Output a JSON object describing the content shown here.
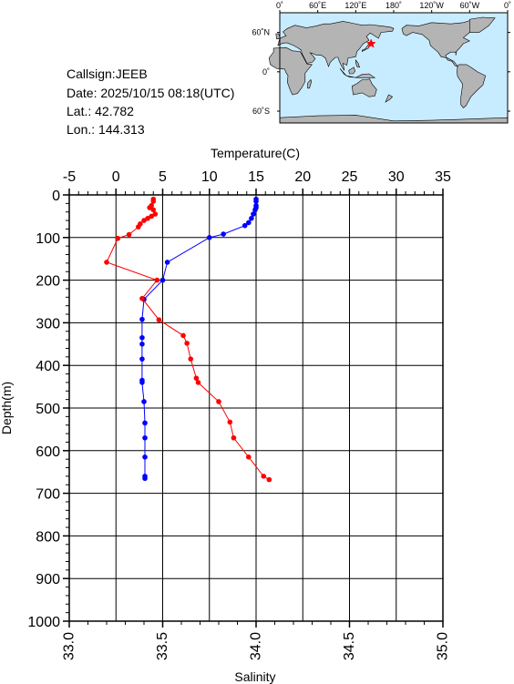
{
  "info": {
    "callsign": "Callsign:JEEB",
    "date": "Date:  2025/10/15 08:18(UTC)",
    "lat": "Lat.:  42.782",
    "lon": "Lon.:  144.313"
  },
  "map": {
    "lon_ticks": [
      "0˚",
      "60˚E",
      "120˚E",
      "180˚",
      "120˚W",
      "60˚W",
      "0˚"
    ],
    "lat_ticks": [
      "60˚N",
      "0˚",
      "60˚S"
    ],
    "ocean_color": "#c8ecff",
    "land_color": "#b4b4b4",
    "marker_color": "#ff0000",
    "marker_icon": "star-icon",
    "station": {
      "lat": 42.782,
      "lon": 144.313
    }
  },
  "chart_data": {
    "type": "line",
    "xlabel_top": "Temperature(C)",
    "xlabel_bottom": "Salinity",
    "ylabel": "Depth(m)",
    "y_reversed": true,
    "ylim": [
      0,
      1000
    ],
    "y_ticks": [
      "0",
      "100",
      "200",
      "300",
      "400",
      "500",
      "600",
      "700",
      "800",
      "900",
      "1000"
    ],
    "temp_lim": [
      -5,
      35
    ],
    "temp_ticks": [
      "-5",
      "0",
      "5",
      "10",
      "15",
      "20",
      "25",
      "30",
      "35"
    ],
    "sal_lim": [
      33.0,
      35.0
    ],
    "sal_ticks": [
      "33.0",
      "33.5",
      "34.0",
      "34.5",
      "35.0"
    ],
    "grid": true,
    "series": [
      {
        "key": "temperature",
        "axis": "top",
        "color": "#0000ff",
        "points": [
          {
            "value": 15.0,
            "depth": 10
          },
          {
            "value": 15.0,
            "depth": 15
          },
          {
            "value": 15.0,
            "depth": 25
          },
          {
            "value": 15.0,
            "depth": 30
          },
          {
            "value": 14.9,
            "depth": 35
          },
          {
            "value": 14.7,
            "depth": 45
          },
          {
            "value": 14.5,
            "depth": 55
          },
          {
            "value": 14.2,
            "depth": 65
          },
          {
            "value": 13.8,
            "depth": 72
          },
          {
            "value": 11.5,
            "depth": 92
          },
          {
            "value": 10.0,
            "depth": 100
          },
          {
            "value": 5.5,
            "depth": 158
          },
          {
            "value": 5.0,
            "depth": 200
          },
          {
            "value": 3.0,
            "depth": 245
          },
          {
            "value": 2.8,
            "depth": 292
          },
          {
            "value": 2.8,
            "depth": 335
          },
          {
            "value": 2.8,
            "depth": 350
          },
          {
            "value": 2.8,
            "depth": 385
          },
          {
            "value": 2.8,
            "depth": 435
          },
          {
            "value": 2.8,
            "depth": 440
          },
          {
            "value": 3.0,
            "depth": 485
          },
          {
            "value": 3.1,
            "depth": 535
          },
          {
            "value": 3.1,
            "depth": 570
          },
          {
            "value": 3.1,
            "depth": 615
          },
          {
            "value": 3.1,
            "depth": 660
          },
          {
            "value": 3.1,
            "depth": 665
          }
        ]
      },
      {
        "key": "salinity",
        "axis": "bottom",
        "color": "#ff0000",
        "points": [
          {
            "value": 33.45,
            "depth": 10
          },
          {
            "value": 33.45,
            "depth": 15
          },
          {
            "value": 33.44,
            "depth": 25
          },
          {
            "value": 33.43,
            "depth": 30
          },
          {
            "value": 33.45,
            "depth": 35
          },
          {
            "value": 33.46,
            "depth": 45
          },
          {
            "value": 33.44,
            "depth": 50
          },
          {
            "value": 33.42,
            "depth": 55
          },
          {
            "value": 33.4,
            "depth": 60
          },
          {
            "value": 33.38,
            "depth": 68
          },
          {
            "value": 33.37,
            "depth": 75
          },
          {
            "value": 33.32,
            "depth": 93
          },
          {
            "value": 33.26,
            "depth": 102
          },
          {
            "value": 33.2,
            "depth": 158
          },
          {
            "value": 33.47,
            "depth": 200
          },
          {
            "value": 33.39,
            "depth": 243
          },
          {
            "value": 33.48,
            "depth": 293
          },
          {
            "value": 33.61,
            "depth": 330
          },
          {
            "value": 33.63,
            "depth": 348
          },
          {
            "value": 33.65,
            "depth": 385
          },
          {
            "value": 33.68,
            "depth": 430
          },
          {
            "value": 33.69,
            "depth": 440
          },
          {
            "value": 33.8,
            "depth": 485
          },
          {
            "value": 33.86,
            "depth": 533
          },
          {
            "value": 33.88,
            "depth": 570
          },
          {
            "value": 33.96,
            "depth": 615
          },
          {
            "value": 34.04,
            "depth": 660
          },
          {
            "value": 34.07,
            "depth": 668
          }
        ]
      }
    ]
  }
}
